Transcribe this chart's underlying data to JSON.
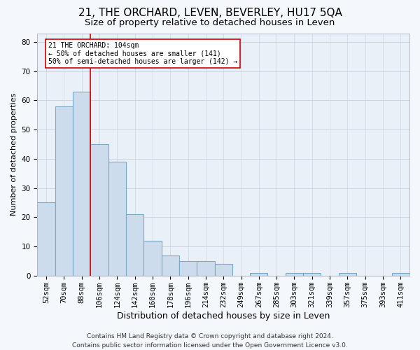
{
  "title": "21, THE ORCHARD, LEVEN, BEVERLEY, HU17 5QA",
  "subtitle": "Size of property relative to detached houses in Leven",
  "xlabel": "Distribution of detached houses by size in Leven",
  "ylabel": "Number of detached properties",
  "bar_labels": [
    "52sqm",
    "70sqm",
    "88sqm",
    "106sqm",
    "124sqm",
    "142sqm",
    "160sqm",
    "178sqm",
    "196sqm",
    "214sqm",
    "232sqm",
    "249sqm",
    "267sqm",
    "285sqm",
    "303sqm",
    "321sqm",
    "339sqm",
    "357sqm",
    "375sqm",
    "393sqm",
    "411sqm"
  ],
  "bar_values": [
    25,
    58,
    63,
    45,
    39,
    21,
    12,
    7,
    5,
    5,
    4,
    0,
    1,
    0,
    1,
    1,
    0,
    1,
    0,
    0,
    1
  ],
  "bar_color": "#ccdcec",
  "bar_edge_color": "#7aaac8",
  "grid_color": "#c8d0dc",
  "bg_color": "#eaf0f8",
  "fig_bg_color": "#f4f7fc",
  "vline_color": "#cc0000",
  "annotation_text": "21 THE ORCHARD: 104sqm\n← 50% of detached houses are smaller (141)\n50% of semi-detached houses are larger (142) →",
  "annotation_box_color": "#ffffff",
  "annotation_box_edge": "#cc0000",
  "ylim": [
    0,
    83
  ],
  "yticks": [
    0,
    10,
    20,
    30,
    40,
    50,
    60,
    70,
    80
  ],
  "footer": "Contains HM Land Registry data © Crown copyright and database right 2024.\nContains public sector information licensed under the Open Government Licence v3.0.",
  "title_fontsize": 11,
  "subtitle_fontsize": 9.5,
  "xlabel_fontsize": 9,
  "ylabel_fontsize": 8,
  "tick_fontsize": 7.5,
  "annot_fontsize": 7,
  "footer_fontsize": 6.5
}
